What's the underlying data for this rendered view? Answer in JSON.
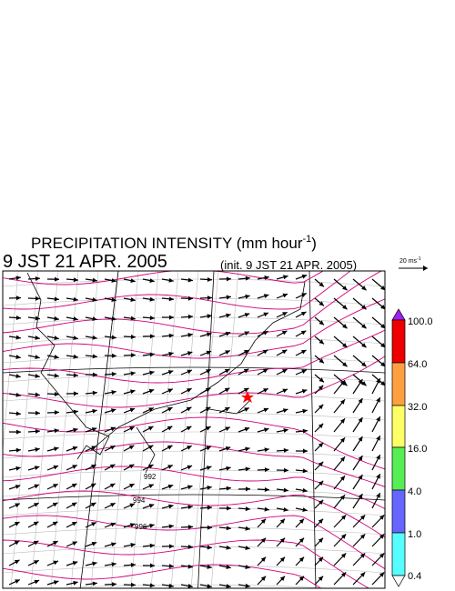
{
  "header": {
    "title": "PRECIPITATION INTENSITY (mm hour",
    "title_sup": "-1",
    "title_end": ")",
    "valid_time": "9 JST 21 APR. 2005",
    "init_time": "(init. 9 JST 21 APR. 2005)"
  },
  "reference_vector": {
    "label": "20 ms",
    "label_sup": "-1"
  },
  "colorbar": {
    "labels": [
      "100.0",
      "64.0",
      "32.0",
      "16.0",
      "4.0",
      "1.0",
      "0.4"
    ]
  },
  "contour_labels": [
    "992",
    "994",
    "996"
  ]
}
